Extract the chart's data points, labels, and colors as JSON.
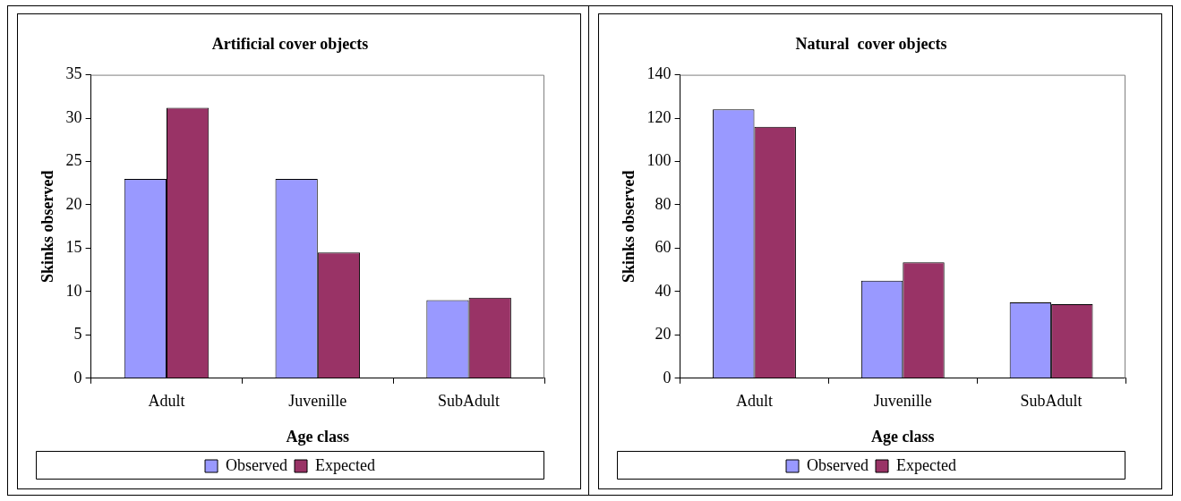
{
  "chart_data": [
    {
      "type": "bar",
      "title": "Artificial cover objects",
      "xlabel": "Age class",
      "ylabel": "Skinks observed",
      "categories": [
        "Adult",
        "Juvenille",
        "SubAdult"
      ],
      "series": [
        {
          "name": "Observed",
          "color": "#9999ff",
          "values": [
            23,
            23,
            9
          ]
        },
        {
          "name": "Expected",
          "color": "#993366",
          "values": [
            31.2,
            14.5,
            9.3
          ]
        }
      ],
      "ylim": [
        0,
        35
      ],
      "yticks": [
        0,
        5,
        10,
        15,
        20,
        25,
        30,
        35
      ],
      "grid": false,
      "legend": "bottom"
    },
    {
      "type": "bar",
      "title": "Natural  cover objects",
      "xlabel": "Age class",
      "ylabel": "Skinks observed",
      "categories": [
        "Adult",
        "Juvenille",
        "SubAdult"
      ],
      "series": [
        {
          "name": "Observed",
          "color": "#9999ff",
          "values": [
            124,
            45,
            35
          ]
        },
        {
          "name": "Expected",
          "color": "#993366",
          "values": [
            116,
            53.5,
            34.2
          ]
        }
      ],
      "ylim": [
        0,
        140
      ],
      "yticks": [
        0,
        20,
        40,
        60,
        80,
        100,
        120,
        140
      ],
      "grid": false,
      "legend": "bottom"
    }
  ]
}
